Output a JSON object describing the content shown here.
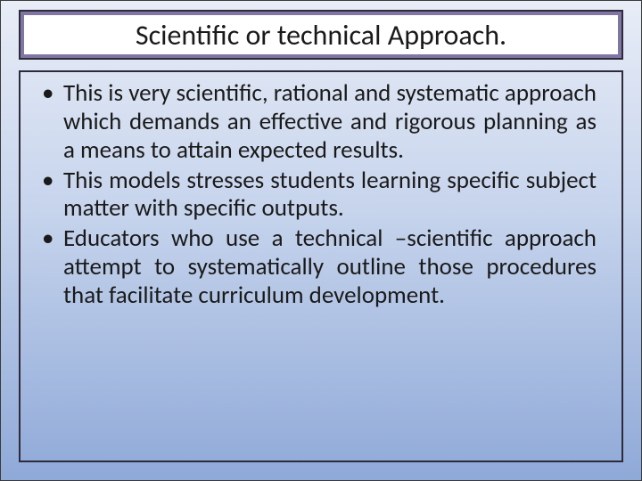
{
  "slide": {
    "title": "Scientific or technical Approach.",
    "bullets": [
      "This is very scientific, rational and systematic approach which demands an effective and rigorous planning as a means to attain expected results.",
      "This models stresses students learning specific subject matter with specific outputs.",
      "Educators who use a technical –scientific approach attempt to systematically outline those procedures that facilitate curriculum development."
    ]
  },
  "style": {
    "background_gradient_top": "#e8edf7",
    "background_gradient_mid": "#c5d3ec",
    "background_gradient_bottom": "#8fa9d8",
    "title_border_color": "#2f2a3a",
    "title_band_color": "#8076a3",
    "title_inner_bg": "#ffffff",
    "title_fontsize": 32,
    "body_fontsize": 27,
    "text_color": "#1a1a1a",
    "content_border_color": "#2f2a3a",
    "font_family": "Calibri"
  }
}
